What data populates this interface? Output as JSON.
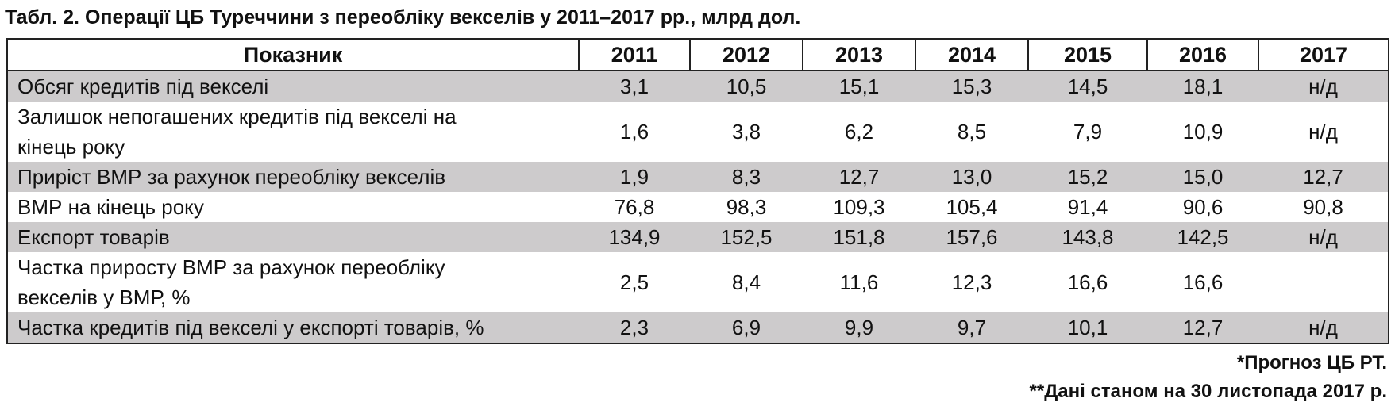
{
  "caption": "Табл. 2. Операції ЦБ Туреччини з переобліку векселів у 2011–2017 рр., млрд дол.",
  "table": {
    "headers": [
      "Показник",
      "2011",
      "2012",
      "2013",
      "2014",
      "2015",
      "2016",
      "2017"
    ],
    "rows": [
      {
        "label": "Обсяг кредитів під векселі",
        "values": [
          "3,1",
          "10,5",
          "15,1",
          "15,3",
          "14,5",
          "18,1",
          "н/д"
        ]
      },
      {
        "label_line1": "Залишок непогашених кредитів під векселі на",
        "label_line2": "кінець року",
        "values": [
          "1,6",
          "3,8",
          "6,2",
          "8,5",
          "7,9",
          "10,9",
          "н/д"
        ]
      },
      {
        "label": "Приріст ВМР за рахунок переобліку векселів",
        "values": [
          "1,9",
          "8,3",
          "12,7",
          "13,0",
          "15,2",
          "15,0",
          "12,7"
        ]
      },
      {
        "label": "ВМР на кінець року",
        "values": [
          "76,8",
          "98,3",
          "109,3",
          "105,4",
          "91,4",
          "90,6",
          "90,8"
        ]
      },
      {
        "label": "Експорт товарів",
        "values": [
          "134,9",
          "152,5",
          "151,8",
          "157,6",
          "143,8",
          "142,5",
          "н/д"
        ]
      },
      {
        "label_line1": "Частка приросту ВМР за рахунок переобліку",
        "label_line2": "векселів у ВМР, %",
        "values": [
          "2,5",
          "8,4",
          "11,6",
          "12,3",
          "16,6",
          "16,6",
          ""
        ]
      },
      {
        "label": "Частка кредитів під векселі у експорті товарів, %",
        "values": [
          "2,3",
          "6,9",
          "9,9",
          "9,7",
          "10,1",
          "12,7",
          "н/д"
        ]
      }
    ]
  },
  "footnotes": [
    "*Прогноз ЦБ РТ.",
    "**Дані станом на 30 листопада 2017 р."
  ]
}
